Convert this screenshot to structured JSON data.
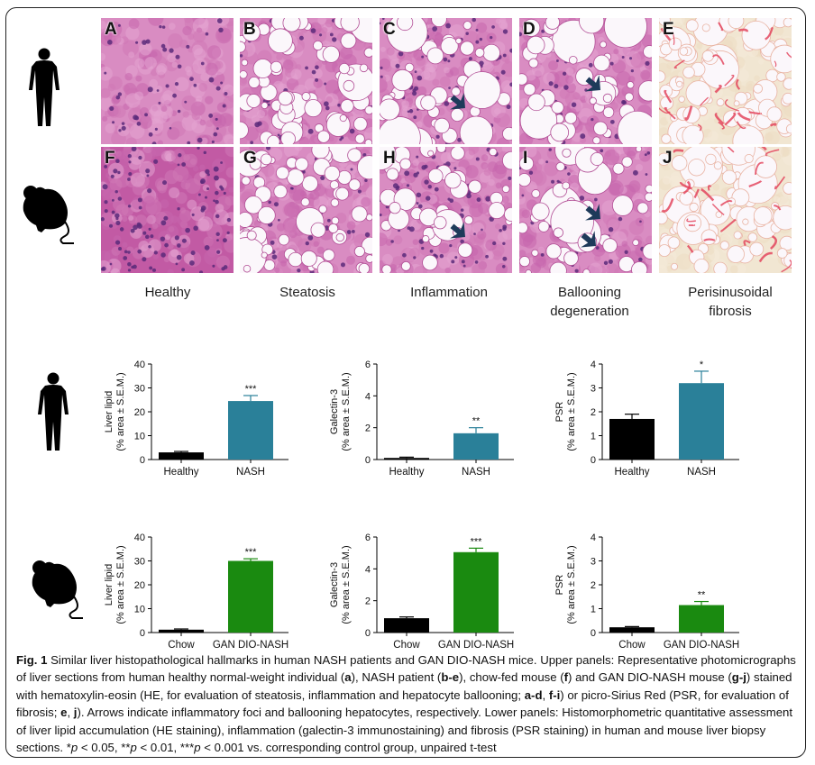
{
  "panels": [
    {
      "label": "A",
      "style": "he-normal"
    },
    {
      "label": "B",
      "style": "he-steatosis"
    },
    {
      "label": "C",
      "style": "he-inflammation"
    },
    {
      "label": "D",
      "style": "he-ballooning"
    },
    {
      "label": "E",
      "style": "psr"
    },
    {
      "label": "F",
      "style": "he-normal-dense"
    },
    {
      "label": "G",
      "style": "he-steatosis"
    },
    {
      "label": "H",
      "style": "he-inflammation"
    },
    {
      "label": "I",
      "style": "he-ballooning"
    },
    {
      "label": "J",
      "style": "psr"
    }
  ],
  "column_titles": [
    [
      "Healthy"
    ],
    [
      "Steatosis"
    ],
    [
      "Inflammation"
    ],
    [
      "Ballooning",
      "degeneration"
    ],
    [
      "Perisinusoidal",
      "fibrosis"
    ]
  ],
  "icons": {
    "human": "human-silhouette-icon",
    "mouse": "mouse-silhouette-icon"
  },
  "colors": {
    "human_bar": "#2a8099",
    "mouse_bar": "#1a8a10",
    "control_bar": "#000000",
    "he_pink": "#d46fae",
    "psr_red": "#e23c56"
  },
  "chart_data": [
    {
      "type": "bar",
      "ylabel": [
        "Liver lipid",
        "(% area ± S.E.M.)"
      ],
      "ylim": [
        0,
        40
      ],
      "ticks": [
        0,
        10,
        20,
        30,
        40
      ],
      "categories": [
        "Healthy",
        "NASH"
      ],
      "values": [
        3,
        24.5
      ],
      "errors": [
        0.4,
        2.3
      ],
      "sig": "***"
    },
    {
      "type": "bar",
      "ylabel": [
        "Galectin-3",
        "(% area ± S.E.M.)"
      ],
      "ylim": [
        0,
        6
      ],
      "ticks": [
        0,
        2,
        4,
        6
      ],
      "categories": [
        "Healthy",
        "NASH"
      ],
      "values": [
        0.1,
        1.65
      ],
      "errors": [
        0.05,
        0.35
      ],
      "sig": "**"
    },
    {
      "type": "bar",
      "ylabel": [
        "PSR",
        "(% area ± S.E.M.)"
      ],
      "ylim": [
        0,
        4
      ],
      "ticks": [
        0,
        1,
        2,
        3,
        4
      ],
      "categories": [
        "Healthy",
        "NASH"
      ],
      "values": [
        1.7,
        3.2
      ],
      "errors": [
        0.2,
        0.5
      ],
      "sig": "*"
    },
    {
      "type": "bar",
      "ylabel": [
        "Liver lipid",
        "(% area ± S.E.M.)"
      ],
      "ylim": [
        0,
        40
      ],
      "ticks": [
        0,
        10,
        20,
        30,
        40
      ],
      "categories": [
        "Chow",
        "GAN DIO-NASH"
      ],
      "values": [
        1.2,
        30
      ],
      "errors": [
        0.3,
        0.9
      ],
      "sig": "***"
    },
    {
      "type": "bar",
      "ylabel": [
        "Galectin-3",
        "(% area ± S.E.M.)"
      ],
      "ylim": [
        0,
        6
      ],
      "ticks": [
        0,
        2,
        4,
        6
      ],
      "categories": [
        "Chow",
        "GAN DIO-NASH"
      ],
      "values": [
        0.9,
        5.05
      ],
      "errors": [
        0.08,
        0.25
      ],
      "sig": "***"
    },
    {
      "type": "bar",
      "ylabel": [
        "PSR",
        "(% area ± S.E.M.)"
      ],
      "ylim": [
        0,
        4
      ],
      "ticks": [
        0,
        1,
        2,
        3,
        4
      ],
      "categories": [
        "Chow",
        "GAN DIO-NASH"
      ],
      "values": [
        0.22,
        1.15
      ],
      "errors": [
        0.03,
        0.15
      ],
      "sig": "**"
    }
  ],
  "caption": [
    {
      "t": "Fig. 1",
      "b": true
    },
    {
      "t": " Similar liver histopathological hallmarks in human NASH patients and GAN DIO-NASH mice. Upper panels: Representative photomicrographs of liver sections from human healthy normal-weight individual ("
    },
    {
      "t": "a",
      "b": true
    },
    {
      "t": "), NASH patient ("
    },
    {
      "t": "b-e",
      "b": true
    },
    {
      "t": "), chow-fed mouse ("
    },
    {
      "t": "f",
      "b": true
    },
    {
      "t": ") and GAN DIO-NASH mouse ("
    },
    {
      "t": "g-j",
      "b": true
    },
    {
      "t": ") stained with hematoxylin-eosin (HE, for evaluation of steatosis, inflammation and hepatocyte ballooning; "
    },
    {
      "t": "a-d",
      "b": true
    },
    {
      "t": ", "
    },
    {
      "t": "f-i",
      "b": true
    },
    {
      "t": ") or picro-Sirius Red (PSR, for evaluation of fibrosis; "
    },
    {
      "t": "e",
      "b": true
    },
    {
      "t": ", "
    },
    {
      "t": "j",
      "b": true
    },
    {
      "t": "). Arrows indicate inflammatory foci and ballooning hepatocytes, respectively. Lower panels: Histomorphometric quantitative assessment of liver lipid accumulation (HE staining), inflammation (galectin-3 immunostaining) and fibrosis (PSR staining) in human and mouse liver biopsy sections. *"
    },
    {
      "t": "p",
      "i": true
    },
    {
      "t": " < 0.05, **"
    },
    {
      "t": "p",
      "i": true
    },
    {
      "t": " < 0.01, ***"
    },
    {
      "t": "p",
      "i": true
    },
    {
      "t": " < 0.001 vs. corresponding control group, unpaired t-test"
    }
  ]
}
